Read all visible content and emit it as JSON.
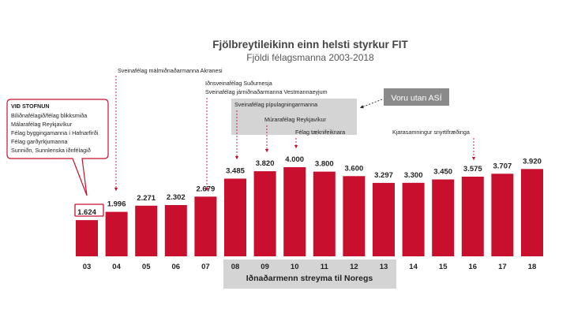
{
  "chart_data": {
    "type": "bar",
    "title": "Fjölbreytileikinn einn helsti styrkur FIT",
    "subtitle": "Fjöldi félagsmanna 2003-2018",
    "categories": [
      "03",
      "04",
      "05",
      "06",
      "07",
      "08",
      "09",
      "10",
      "11",
      "12",
      "13",
      "14",
      "15",
      "16",
      "17",
      "18"
    ],
    "values": [
      1624,
      1996,
      2271,
      2302,
      2679,
      3485,
      3820,
      4000,
      3800,
      3600,
      3297,
      3300,
      3450,
      3575,
      3707,
      3920
    ],
    "value_labels": [
      "1.624",
      "1.996",
      "2.271",
      "2.302",
      "2.679",
      "3.485",
      "3.820",
      "4.000",
      "3.800",
      "3.600",
      "3.297",
      "3.300",
      "3.450",
      "3.575",
      "3.707",
      "3.920"
    ],
    "ylim": [
      0,
      4000
    ],
    "bar_color": "#c8102e",
    "grid": false,
    "xlabel": "",
    "ylabel": ""
  },
  "founding_box": {
    "heading": "VIÐ STOFNUN",
    "items": [
      "Bíliðnafélagið/félag blikksmiða",
      "Málarafélag Reykjavíkur",
      "Félag byggingamanna í Hafnarfirði",
      "Félag garðyrkjumanna",
      "Sunniðn, Sunnlenska iðnfélagið"
    ]
  },
  "annotations": {
    "a04": "Sveinafélag málmiðnaðarmanna Akranesi",
    "a07_1": "Iðnsveinafélag Suðurnesja",
    "a07_2": "Sveinafélag járniðnaðarmanna Vestmannaeyjum",
    "a08": "Sveinafélag pípulagningarmanna",
    "a09": "Múrarafélag Reykjavíkur",
    "a10": "Félag tæknifeiknara",
    "a16": "Kjarasamningur snyrtifræðinga"
  },
  "callout": {
    "label": "Voru utan ASÍ"
  },
  "band": {
    "label": "Iðnaðarmenn streyma til Noregs"
  },
  "colors": {
    "bar": "#c8102e",
    "callout": "#8a8a8a",
    "shade": "#d4d4d4",
    "highlight": "#c8102e"
  }
}
